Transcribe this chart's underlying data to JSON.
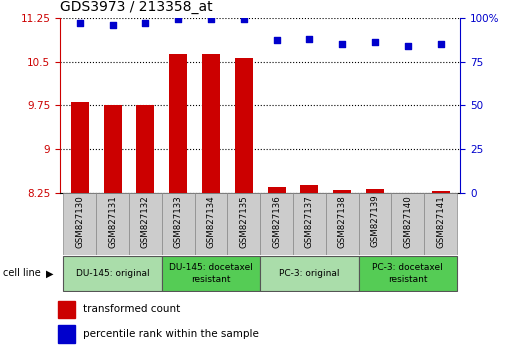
{
  "title": "GDS3973 / 213358_at",
  "samples": [
    "GSM827130",
    "GSM827131",
    "GSM827132",
    "GSM827133",
    "GSM827134",
    "GSM827135",
    "GSM827136",
    "GSM827137",
    "GSM827138",
    "GSM827139",
    "GSM827140",
    "GSM827141"
  ],
  "bar_values": [
    9.8,
    9.75,
    9.75,
    10.62,
    10.62,
    10.56,
    8.35,
    8.38,
    8.3,
    8.32,
    8.22,
    8.28
  ],
  "dot_values": [
    97,
    96,
    97,
    99,
    99,
    99,
    87,
    88,
    85,
    86,
    84,
    85
  ],
  "bar_color": "#cc0000",
  "dot_color": "#0000cc",
  "ylim_left": [
    8.25,
    11.25
  ],
  "ylim_right": [
    0,
    100
  ],
  "yticks_left": [
    8.25,
    9.0,
    9.75,
    10.5,
    11.25
  ],
  "yticks_right": [
    0,
    25,
    50,
    75,
    100
  ],
  "ytick_labels_left": [
    "8.25",
    "9",
    "9.75",
    "10.5",
    "11.25"
  ],
  "ytick_labels_right": [
    "0",
    "25",
    "50",
    "75",
    "100%"
  ],
  "groups": [
    {
      "label": "DU-145: original",
      "start": 0,
      "end": 3,
      "color": "#aaddaa"
    },
    {
      "label": "DU-145: docetaxel\nresistant",
      "start": 3,
      "end": 6,
      "color": "#55cc55"
    },
    {
      "label": "PC-3: original",
      "start": 6,
      "end": 9,
      "color": "#aaddaa"
    },
    {
      "label": "PC-3: docetaxel\nresistant",
      "start": 9,
      "end": 12,
      "color": "#55cc55"
    }
  ],
  "cell_line_label": "cell line",
  "legend_bar_label": "transformed count",
  "legend_dot_label": "percentile rank within the sample",
  "background_color": "#ffffff",
  "tick_area_bg": "#cccccc",
  "bar_width": 0.55
}
